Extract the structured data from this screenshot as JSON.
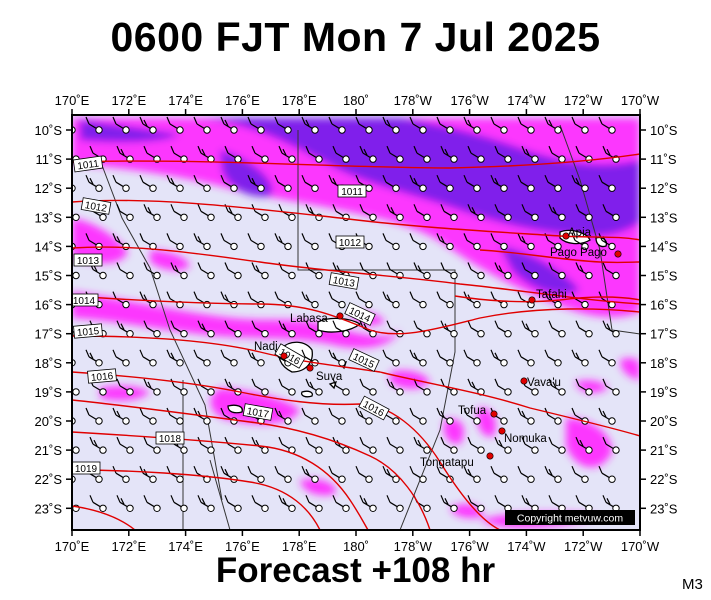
{
  "header": {
    "title": "0600 FJT Mon 7 Jul 2025"
  },
  "footer": {
    "forecast": "Forecast +108 hr",
    "code": "M3"
  },
  "map": {
    "lon_labels": [
      "170˚E",
      "172˚E",
      "174˚E",
      "176˚E",
      "178˚E",
      "180˚",
      "178˚W",
      "176˚W",
      "174˚W",
      "172˚W",
      "170˚W"
    ],
    "lat_labels": [
      "10˚S",
      "11˚S",
      "12˚S",
      "13˚S",
      "14˚S",
      "15˚S",
      "16˚S",
      "17˚S",
      "18˚S",
      "19˚S",
      "20˚S",
      "21˚S",
      "22˚S",
      "23˚S"
    ],
    "places": [
      "Apia",
      "Pago Pago",
      "Tafahi",
      "Labasa",
      "Nadi",
      "Suva",
      "Vava'u",
      "Tofua",
      "Nomuka",
      "Tongatapu"
    ],
    "isobars": [
      "1011",
      "1011",
      "1012",
      "1012",
      "1013",
      "1013",
      "1014",
      "1014",
      "1015",
      "1015",
      "1016",
      "1016",
      "1016",
      "1017",
      "1018",
      "1019"
    ],
    "copyright": "Copyright metvuw.com",
    "colors": {
      "background": "#e4e4f8",
      "rain_light": "#ff22ff",
      "rain_heavy": "#6a1ee8",
      "isobar": "#e00000",
      "city": "#e00000"
    }
  }
}
